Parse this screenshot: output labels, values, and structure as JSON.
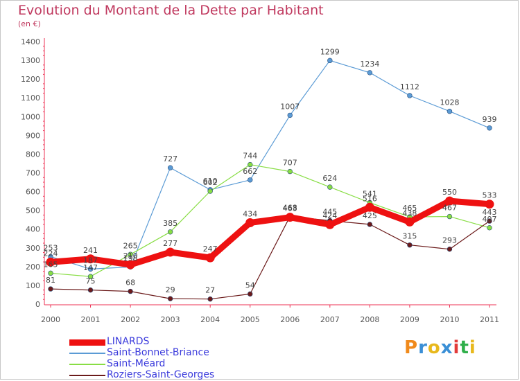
{
  "chart_data": {
    "type": "line",
    "title": "Evolution du Montant de la Dette par Habitant",
    "ylabel": "(en €)",
    "xlabel": "",
    "categories": [
      "2000",
      "2001",
      "2002",
      "2003",
      "2004",
      "2005",
      "2006",
      "2007",
      "2008",
      "2009",
      "2010",
      "2011"
    ],
    "ylim": [
      0,
      1400
    ],
    "yticks": [
      0,
      100,
      200,
      300,
      400,
      500,
      600,
      700,
      800,
      900,
      1000,
      1100,
      1200,
      1300,
      1400
    ],
    "grid": false,
    "legend_position": "bottom-left",
    "series": [
      {
        "name": "LINARDS",
        "color": "#ee1111",
        "values": [
          224,
          241,
          210,
          277,
          247,
          434,
          463,
          424,
          516,
          438,
          550,
          533
        ]
      },
      {
        "name": "Saint-Bonnet-Briance",
        "color": "#5b9bd5",
        "values": [
          253,
          187,
          198,
          727,
          610,
          662,
          1007,
          1299,
          1234,
          1112,
          1028,
          939
        ]
      },
      {
        "name": "Saint-Méard",
        "color": "#88dd44",
        "values": [
          165,
          147,
          265,
          385,
          602,
          744,
          707,
          624,
          541,
          465,
          467,
          407
        ]
      },
      {
        "name": "Roziers-Saint-Georges",
        "color": "#6b1a1a",
        "values": [
          81,
          75,
          68,
          29,
          27,
          54,
          468,
          445,
          425,
          315,
          293,
          443
        ]
      }
    ],
    "data_labels": [
      [
        "224",
        "241",
        "210",
        "277",
        "247",
        "434",
        "463",
        "424",
        "516",
        "438",
        "550",
        "533"
      ],
      [
        "253",
        "187",
        "198",
        "727",
        "610",
        "662",
        "1007",
        "1299",
        "1234",
        "1112",
        "1028",
        "939"
      ],
      [
        "165",
        "147",
        "265",
        "385",
        "602",
        "744",
        "707",
        "624",
        "541",
        "465",
        "467",
        "407"
      ],
      [
        "81",
        "75",
        "68",
        "29",
        "27",
        "54",
        "468",
        "445",
        "425",
        "315",
        "293",
        "443"
      ]
    ]
  },
  "brand": {
    "text": "Proxiti",
    "letter_colors": [
      "#f08a1c",
      "#3a8fd6",
      "#e8b81c",
      "#3a8fd6",
      "#e23a3a",
      "#2faf4a",
      "#e8b81c"
    ]
  }
}
